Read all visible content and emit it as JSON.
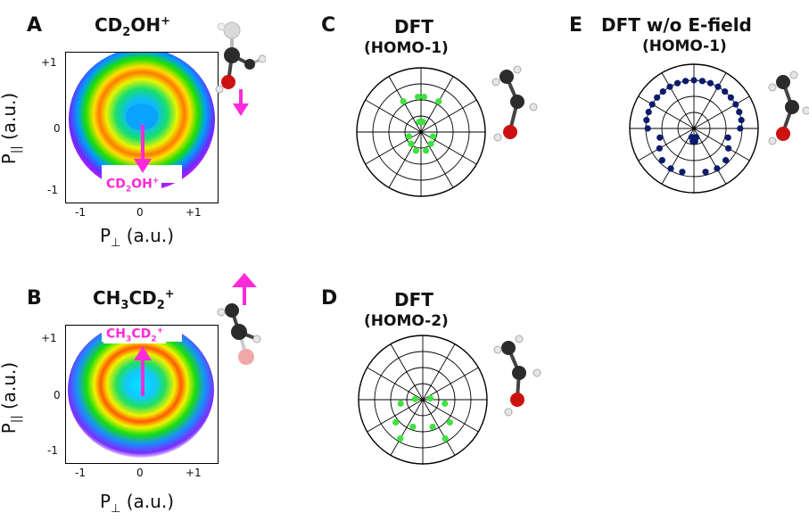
{
  "panel_letters": {
    "a": "A",
    "b": "B",
    "c": "C",
    "d": "D",
    "e": "E"
  },
  "panel_a": {
    "title_base": "CD",
    "title_sub": "2",
    "title_rest": "OH",
    "title_sup": "+",
    "overlay_base": "CD",
    "overlay_sub": "2",
    "overlay_rest": "OH",
    "overlay_sup": "+",
    "y_ticks": [
      "+1",
      "0",
      "-1"
    ],
    "x_ticks": [
      "-1",
      "0",
      "+1"
    ],
    "ylabel_base": "P",
    "ylabel_sub": "||",
    "ylabel_rest": " (a.u.)",
    "xlabel_base": "P",
    "xlabel_sub": "⊥",
    "xlabel_rest": " (a.u.)"
  },
  "panel_b": {
    "title_base": "CH",
    "title_sub": "3",
    "title_mid": "CD",
    "title_sub2": "2",
    "title_sup": "+",
    "overlay_base": "CH",
    "overlay_sub": "3",
    "overlay_mid": "CD",
    "overlay_sub2": "2",
    "overlay_sup": "+",
    "y_ticks": [
      "+1",
      "0",
      "-1"
    ],
    "x_ticks": [
      "-1",
      "0",
      "+1"
    ],
    "ylabel_base": "P",
    "ylabel_sub": "||",
    "ylabel_rest": " (a.u.)",
    "xlabel_base": "P",
    "xlabel_sub": "⊥",
    "xlabel_rest": " (a.u.)"
  },
  "panel_c": {
    "title": "DFT",
    "subtitle": "(HOMO-1)"
  },
  "panel_d": {
    "title": "DFT",
    "subtitle": "(HOMO-2)"
  },
  "panel_e": {
    "title": "DFT w/o E-field",
    "subtitle": "(HOMO-1)"
  },
  "colors": {
    "arrow": "#ff2ad8",
    "dft_dot": "#3fe33f",
    "dft_noefield_dot": "#0b1b6e",
    "oxygen": "#cc1111",
    "carbon": "#2b2b2b",
    "hydrogen": "#e6e6e6"
  },
  "polar_data": {
    "c": [
      [
        95,
        0.55
      ],
      [
        85,
        0.55
      ],
      [
        120,
        0.55
      ],
      [
        60,
        0.55
      ],
      [
        80,
        0.16
      ],
      [
        100,
        0.16
      ],
      [
        200,
        0.2
      ],
      [
        340,
        0.2
      ],
      [
        230,
        0.24
      ],
      [
        310,
        0.24
      ],
      [
        255,
        0.3
      ],
      [
        285,
        0.3
      ]
    ],
    "d": [
      [
        10,
        0.12
      ],
      [
        175,
        0.12
      ],
      [
        350,
        0.35
      ],
      [
        190,
        0.35
      ],
      [
        320,
        0.55
      ],
      [
        220,
        0.55
      ],
      [
        300,
        0.7
      ],
      [
        240,
        0.7
      ],
      [
        290,
        0.45
      ],
      [
        250,
        0.45
      ]
    ],
    "e": [
      [
        170,
        0.75
      ],
      [
        160,
        0.75
      ],
      [
        150,
        0.75
      ],
      [
        140,
        0.75
      ],
      [
        130,
        0.75
      ],
      [
        120,
        0.75
      ],
      [
        110,
        0.75
      ],
      [
        100,
        0.75
      ],
      [
        90,
        0.75
      ],
      [
        80,
        0.75
      ],
      [
        70,
        0.75
      ],
      [
        60,
        0.75
      ],
      [
        50,
        0.75
      ],
      [
        40,
        0.75
      ],
      [
        30,
        0.75
      ],
      [
        20,
        0.75
      ],
      [
        10,
        0.75
      ],
      [
        0,
        0.72
      ],
      [
        180,
        0.72
      ],
      [
        195,
        0.55
      ],
      [
        345,
        0.55
      ],
      [
        210,
        0.62
      ],
      [
        330,
        0.62
      ],
      [
        225,
        0.7
      ],
      [
        315,
        0.7
      ],
      [
        240,
        0.72
      ],
      [
        300,
        0.72
      ],
      [
        255,
        0.7
      ],
      [
        285,
        0.7
      ],
      [
        265,
        0.2
      ],
      [
        275,
        0.2
      ],
      [
        255,
        0.14
      ],
      [
        285,
        0.14
      ]
    ]
  }
}
